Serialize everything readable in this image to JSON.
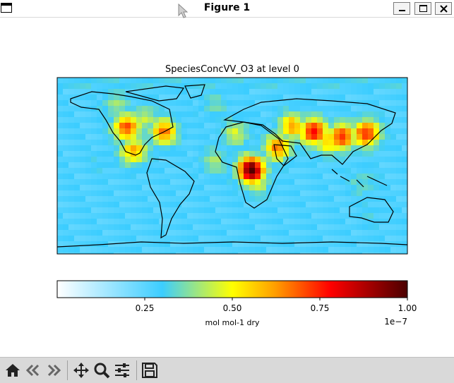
{
  "window": {
    "title": "Figure 1"
  },
  "toolbar": {
    "items": [
      "home-icon",
      "back-icon",
      "forward-icon",
      "pan-icon",
      "zoom-icon",
      "configure-subplots-icon",
      "save-icon"
    ]
  },
  "chart_data": {
    "type": "heatmap",
    "title": "SpeciesConcVV_O3 at level 0",
    "colorbar": {
      "ticks": [
        0.25,
        0.5,
        0.75,
        1.0
      ],
      "tick_labels": [
        "0.25",
        "0.50",
        "0.75",
        "1.00"
      ],
      "range": [
        0.0,
        1.0
      ],
      "scale_label": "1e−7",
      "label": "mol mol-1 dry",
      "cmap": [
        "#ffffff",
        "#3ccdff",
        "#ffff00",
        "#ff0000",
        "#4b0000"
      ]
    },
    "hotspots": [
      {
        "region": "Central Africa",
        "value": 1.0
      },
      {
        "region": "Middle East / Central Asia",
        "value": 0.8
      },
      {
        "region": "North India",
        "value": 0.75
      },
      {
        "region": "East China",
        "value": 0.75
      },
      {
        "region": "Western USA",
        "value": 0.7
      },
      {
        "region": "Eastern USA",
        "value": 0.65
      },
      {
        "region": "Saudi Arabia",
        "value": 0.65
      },
      {
        "region": "Mexico",
        "value": 0.6
      }
    ]
  }
}
